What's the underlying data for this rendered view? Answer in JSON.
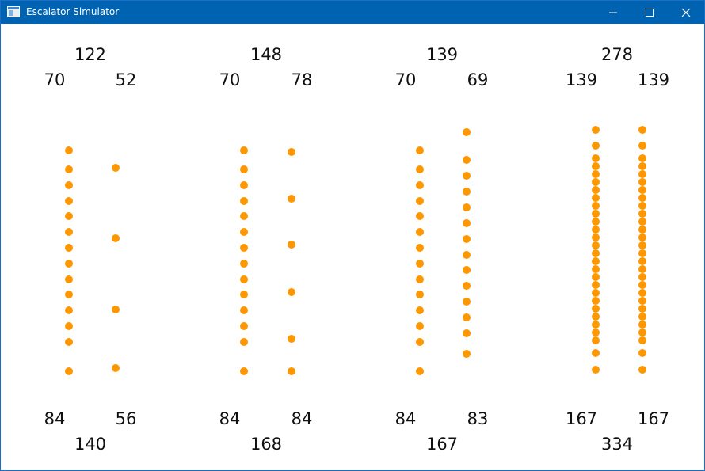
{
  "window": {
    "title": "Escalator Simulator",
    "icon": "app-window-icon",
    "controls": {
      "minimize": "minimize-icon",
      "maximize": "maximize-icon",
      "close": "close-icon"
    }
  },
  "colors": {
    "titlebar": "#0063b1",
    "person_dot": "#ff9800"
  },
  "groups": [
    {
      "top_total": "122",
      "top_left": "70",
      "top_right": "52",
      "bottom_left": "84",
      "bottom_right": "56",
      "bottom_total": "140"
    },
    {
      "top_total": "148",
      "top_left": "70",
      "top_right": "78",
      "bottom_left": "84",
      "bottom_right": "84",
      "bottom_total": "168"
    },
    {
      "top_total": "139",
      "top_left": "70",
      "top_right": "69",
      "bottom_left": "84",
      "bottom_right": "83",
      "bottom_total": "167"
    },
    {
      "top_total": "278",
      "top_left": "139",
      "top_right": "139",
      "bottom_left": "167",
      "bottom_right": "167",
      "bottom_total": "334"
    }
  ]
}
